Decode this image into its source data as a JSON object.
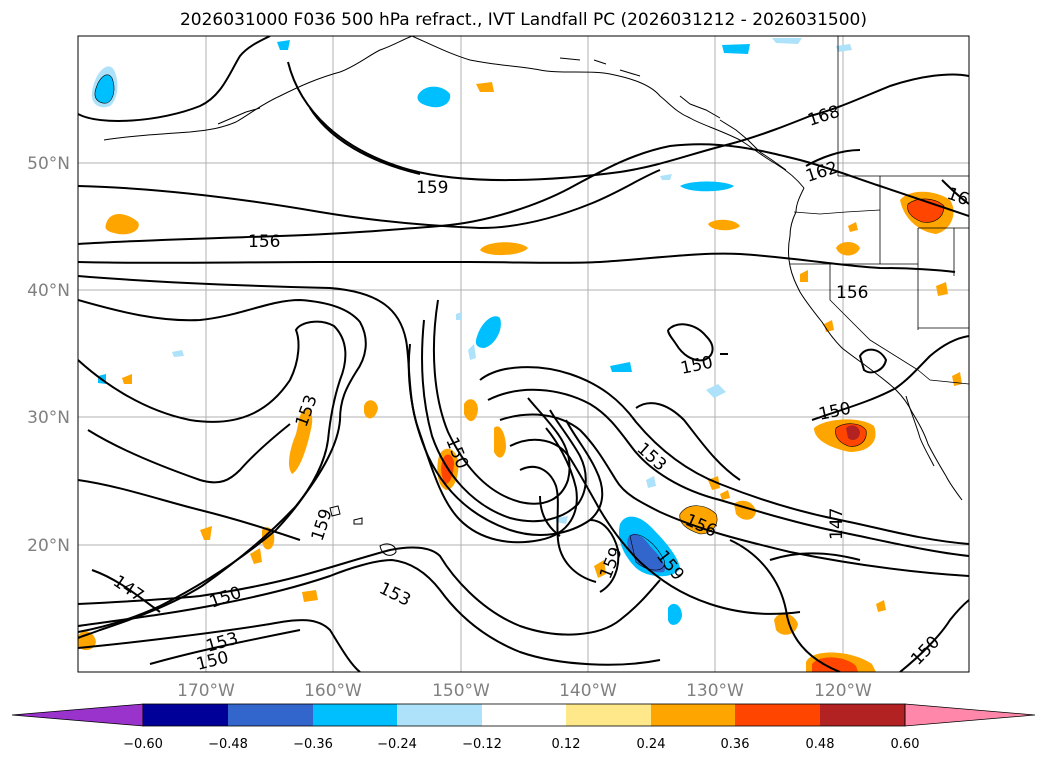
{
  "title": "2026031000 F036 500 hPa refract., IVT Landfall PC (2026031212 - 2026031500)",
  "map": {
    "lat_labels": [
      "50°N",
      "40°N",
      "30°N",
      "20°N"
    ],
    "lon_labels": [
      "170°W",
      "160°W",
      "150°W",
      "140°W",
      "130°W",
      "120°W"
    ],
    "contour_labels": [
      "168",
      "162",
      "16",
      "159",
      "156",
      "156",
      "150",
      "153",
      "150",
      "150",
      "153",
      "156",
      "159",
      "159",
      "159",
      "147",
      "147",
      "150",
      "153",
      "150",
      "153",
      "150"
    ]
  },
  "colorbar": {
    "ticks": [
      "−0.60",
      "−0.48",
      "−0.36",
      "−0.24",
      "−0.12",
      "0.12",
      "0.24",
      "0.36",
      "0.48",
      "0.60"
    ],
    "colors": [
      "#9933cc",
      "#000099",
      "#3366cc",
      "#00bfff",
      "#aee2fa",
      "#ffffff",
      "#ffe88a",
      "#ffa500",
      "#ff4500",
      "#b22222",
      "#ff88aa"
    ],
    "under_color": "#9933cc",
    "over_color": "#ff88aa"
  },
  "anomaly_colors": {
    "neg_light": "#aee2fa",
    "neg_mid": "#00bfff",
    "neg_dark": "#3366cc",
    "pos_light": "#ffe88a",
    "pos_mid": "#ffa500",
    "pos_dark": "#ff4500",
    "pos_darker": "#b22222"
  }
}
